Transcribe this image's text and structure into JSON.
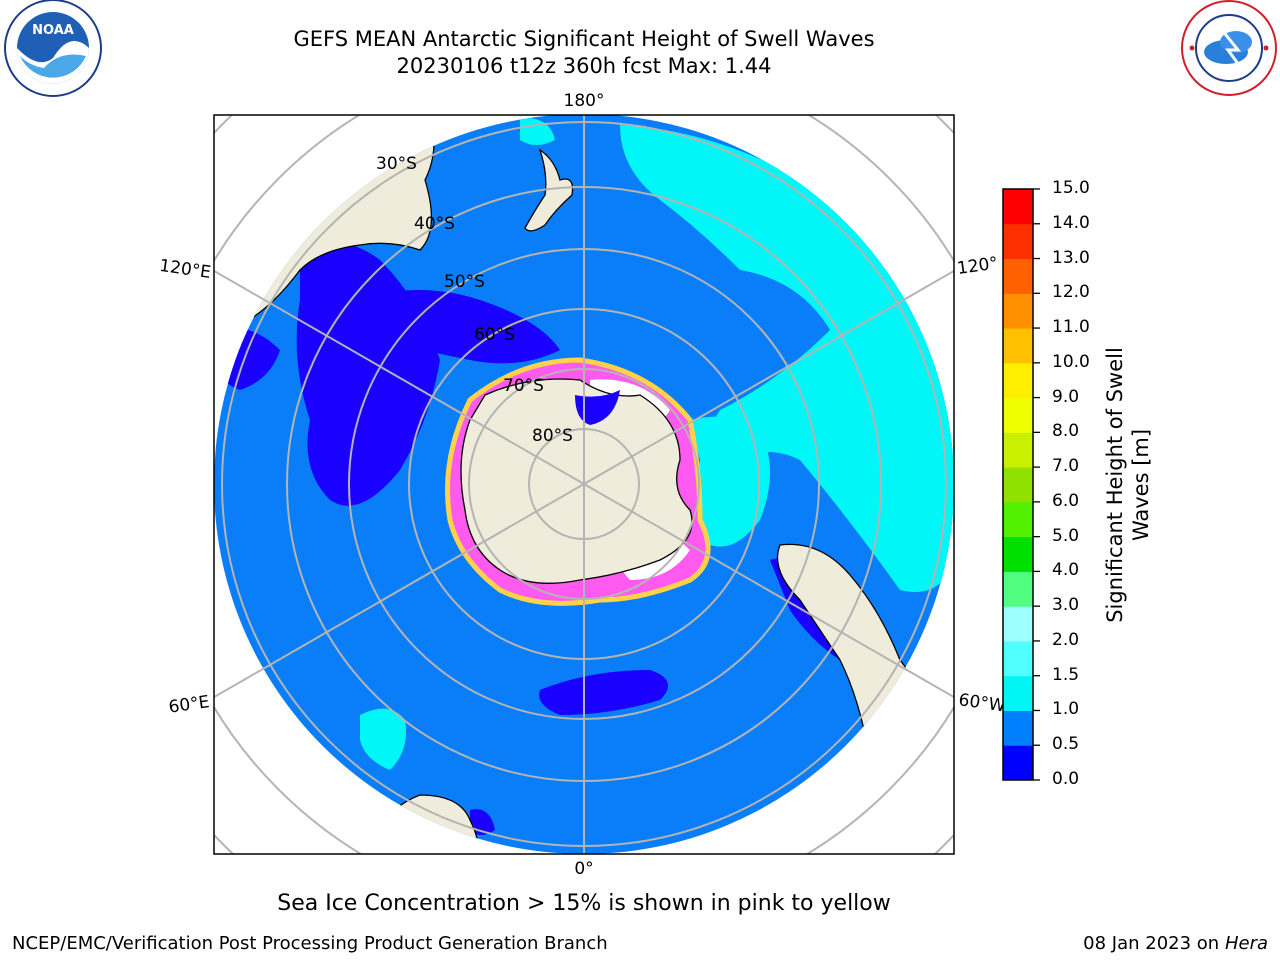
{
  "header": {
    "title_line1": "GEFS MEAN Antarctic Significant Height of Swell Waves",
    "title_line2": "20230106 t12z 360h fcst   Max: 1.44",
    "left_logo": "noaa-logo",
    "right_logo": "national-weather-service-logo"
  },
  "map": {
    "projection": "south-polar-stereographic",
    "lon_labels": {
      "top": "180°",
      "bottom": "0°",
      "left_upper": "120°E",
      "right_upper": "120°",
      "left_lower": "60°E",
      "right_lower": "60°W"
    },
    "lat_labels": [
      "30°S",
      "40°S",
      "50°S",
      "60°S",
      "70°S",
      "80°S"
    ],
    "colors": {
      "ocean": "#0a7ef8",
      "land": "#efecdb",
      "grid": "#b4b4b4",
      "coast": "#000000",
      "swell_low": "#1a00ff",
      "swell_mid": "#00f7f7",
      "sea_ice_high": "#ffffff",
      "sea_ice_mid": "#ff5af0",
      "sea_ice_edge": "#ffd24a"
    }
  },
  "colorbar": {
    "label": "Significant Height of Swell Waves [m]",
    "label_line1": "Significant Height of Swell",
    "label_line2": "Waves [m]",
    "ticks": [
      "0.0",
      "0.5",
      "1.0",
      "1.5",
      "2.0",
      "3.0",
      "4.0",
      "5.0",
      "6.0",
      "7.0",
      "8.0",
      "9.0",
      "10.0",
      "11.0",
      "12.0",
      "13.0",
      "14.0",
      "15.0"
    ],
    "colors": [
      "#0000ff",
      "#0080ff",
      "#00f5f5",
      "#50ffff",
      "#a0ffff",
      "#50ff80",
      "#00e000",
      "#50f000",
      "#90e000",
      "#c8f000",
      "#f0ff00",
      "#ffee00",
      "#ffc000",
      "#ff9000",
      "#ff6000",
      "#ff3000",
      "#ff0000"
    ]
  },
  "caption": "Sea Ice Concentration > 15% is shown in pink to yellow",
  "footer": {
    "left": "NCEP/EMC/Verification Post Processing Product Generation Branch",
    "right_date": "08 Jan 2023 on ",
    "right_host": "Hera"
  }
}
